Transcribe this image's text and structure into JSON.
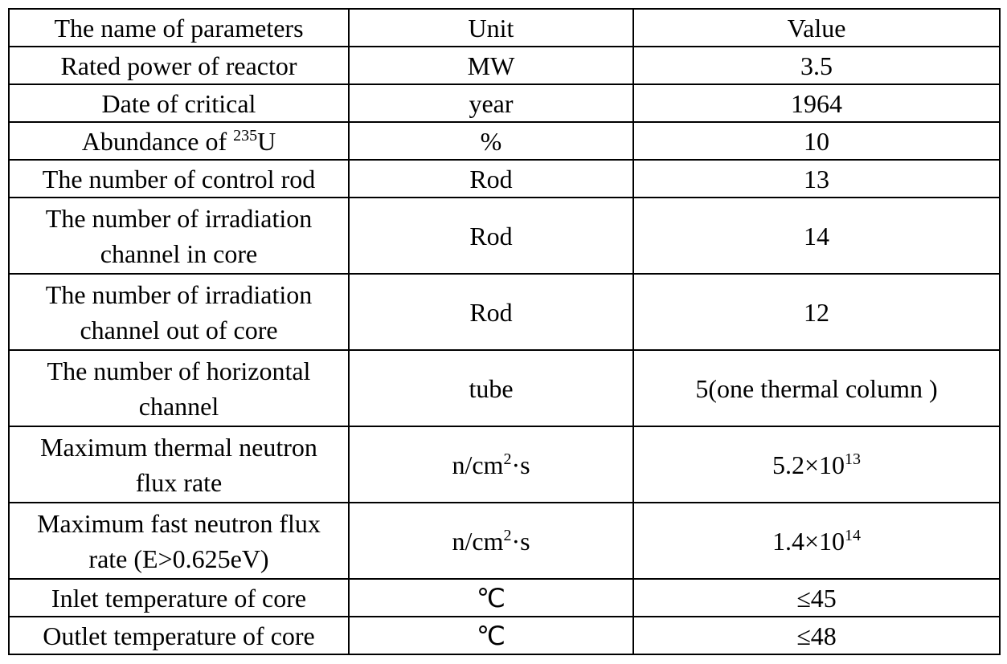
{
  "table": {
    "header": [
      [
        [
          "The name of parameters"
        ]
      ],
      [
        [
          "Unit"
        ]
      ],
      [
        [
          "Value"
        ]
      ]
    ],
    "rows": [
      [
        [
          [
            "Rated power of reactor"
          ]
        ],
        [
          [
            "MW"
          ]
        ],
        [
          [
            "3.5"
          ]
        ]
      ],
      [
        [
          [
            "Date of critical"
          ]
        ],
        [
          [
            "year"
          ]
        ],
        [
          [
            "1964"
          ]
        ]
      ],
      [
        [
          [
            {
              "t": "Abundance of "
            },
            {
              "sup": "235"
            },
            {
              "t": "U"
            }
          ]
        ],
        [
          [
            "%"
          ]
        ],
        [
          [
            "10"
          ]
        ]
      ],
      [
        [
          [
            "The number of control rod"
          ]
        ],
        [
          [
            "Rod"
          ]
        ],
        [
          [
            "13"
          ]
        ]
      ],
      [
        [
          [
            "The number of irradiation"
          ],
          [
            "channel in core"
          ]
        ],
        [
          [
            "Rod"
          ]
        ],
        [
          [
            "14"
          ]
        ]
      ],
      [
        [
          [
            "The number of irradiation"
          ],
          [
            "channel out of core"
          ]
        ],
        [
          [
            "Rod"
          ]
        ],
        [
          [
            "12"
          ]
        ]
      ],
      [
        [
          [
            "The number of horizontal"
          ],
          [
            "channel"
          ]
        ],
        [
          [
            "tube"
          ]
        ],
        [
          [
            "5(one thermal column )"
          ]
        ]
      ],
      [
        [
          [
            "Maximum thermal neutron"
          ],
          [
            "flux rate"
          ]
        ],
        [
          [
            {
              "t": "n/cm"
            },
            {
              "sup": "2"
            },
            {
              "t": "·s"
            }
          ]
        ],
        [
          [
            {
              "t": "5.2×10"
            },
            {
              "sup": "13"
            }
          ]
        ]
      ],
      [
        [
          [
            "Maximum fast neutron flux"
          ],
          [
            "rate (E>0.625eV)"
          ]
        ],
        [
          [
            {
              "t": "n/cm"
            },
            {
              "sup": "2"
            },
            {
              "t": "·s"
            }
          ]
        ],
        [
          [
            {
              "t": "1.4×10"
            },
            {
              "sup": "14"
            }
          ]
        ]
      ],
      [
        [
          [
            "Inlet temperature of core"
          ]
        ],
        [
          [
            "℃"
          ]
        ],
        [
          [
            "≤45"
          ]
        ]
      ],
      [
        [
          [
            "Outlet temperature of core"
          ]
        ],
        [
          [
            "℃"
          ]
        ],
        [
          [
            "≤48"
          ]
        ]
      ]
    ]
  }
}
